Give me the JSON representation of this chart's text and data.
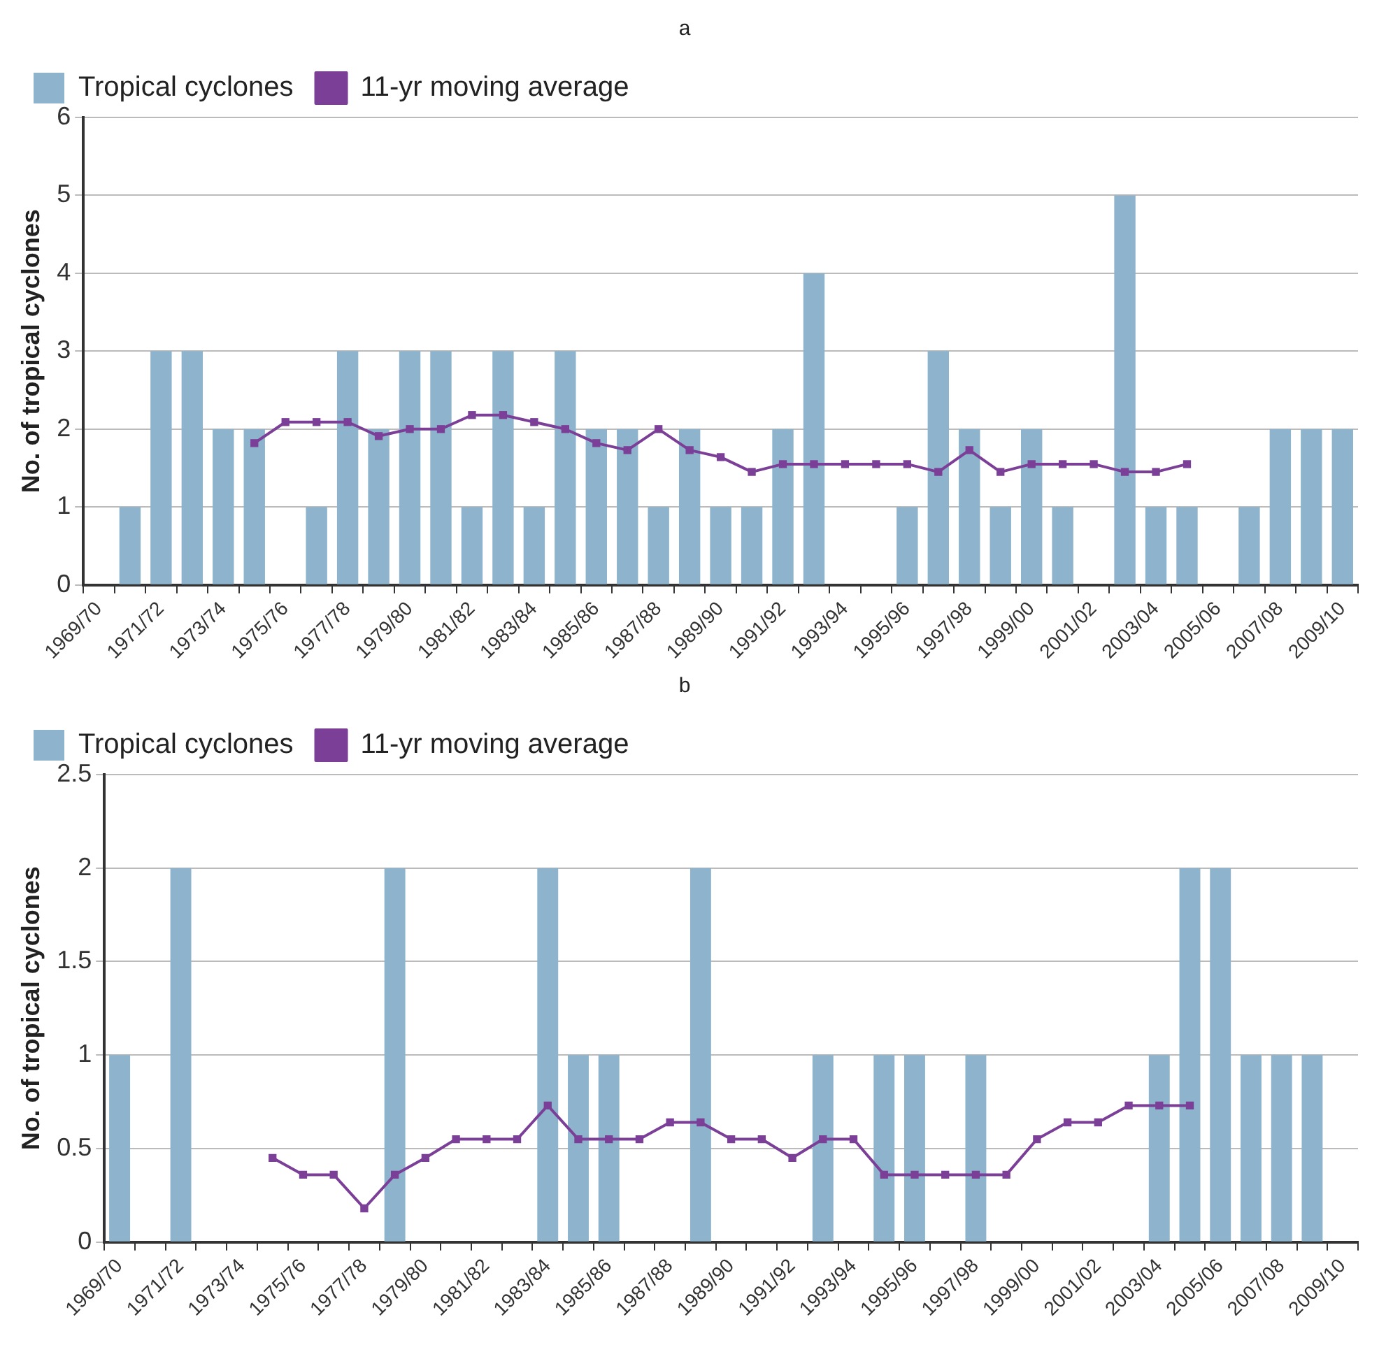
{
  "chart_data": [
    {
      "type": "bar",
      "title": "a",
      "ylabel": "No. of tropical cyclones",
      "categories": [
        "1969/70",
        null,
        "1971/72",
        null,
        "1973/74",
        null,
        "1975/76",
        null,
        "1977/78",
        null,
        "1979/80",
        null,
        "1981/82",
        null,
        "1983/84",
        null,
        "1985/86",
        null,
        "1987/88",
        null,
        "1989/90",
        null,
        "1991/92",
        null,
        "1993/94",
        null,
        "1995/96",
        null,
        "1997/98",
        null,
        "1999/00",
        null,
        "2001/02",
        null,
        "2003/04",
        null,
        "2005/06",
        null,
        "2007/08",
        null,
        "2009/10"
      ],
      "series": [
        {
          "name": "Tropical cyclones",
          "color": "#8db4cc",
          "values": [
            0,
            1,
            3,
            3,
            2,
            2,
            0,
            1,
            3,
            2,
            3,
            3,
            1,
            3,
            1,
            3,
            2,
            2,
            1,
            2,
            1,
            1,
            2,
            4,
            0,
            0,
            1,
            3,
            2,
            1,
            2,
            1,
            0,
            5,
            1,
            1,
            0,
            1,
            2,
            2,
            2
          ]
        },
        {
          "name": "11-yr moving average",
          "type": "line",
          "color": "#7b3f98",
          "values": [
            null,
            null,
            null,
            null,
            null,
            1.82,
            2.09,
            2.09,
            2.09,
            1.91,
            2.0,
            2.0,
            2.18,
            2.18,
            2.09,
            2.0,
            1.82,
            1.73,
            2.0,
            1.73,
            1.64,
            1.45,
            1.55,
            1.55,
            1.55,
            1.55,
            1.55,
            1.45,
            1.73,
            1.45,
            1.55,
            1.55,
            1.55,
            1.45,
            1.45,
            1.55,
            null,
            null,
            null,
            null,
            null
          ]
        }
      ],
      "ylim": [
        0,
        6
      ],
      "yticks": [
        0,
        1,
        2,
        3,
        4,
        5,
        6
      ],
      "grid": "y",
      "legend": "top left",
      "marker": "square",
      "line_style": "solid"
    },
    {
      "type": "bar",
      "title": "b",
      "ylabel": "No. of tropical cyclones",
      "categories": [
        "1969/70",
        null,
        "1971/72",
        null,
        "1973/74",
        null,
        "1975/76",
        null,
        "1977/78",
        null,
        "1979/80",
        null,
        "1981/82",
        null,
        "1983/84",
        null,
        "1985/86",
        null,
        "1987/88",
        null,
        "1989/90",
        null,
        "1991/92",
        null,
        "1993/94",
        null,
        "1995/96",
        null,
        "1997/98",
        null,
        "1999/00",
        null,
        "2001/02",
        null,
        "2003/04",
        null,
        "2005/06",
        null,
        "2007/08",
        null,
        "2009/10"
      ],
      "series": [
        {
          "name": "Tropical cyclones",
          "color": "#8db4cc",
          "values": [
            1,
            0,
            2,
            0,
            0,
            0,
            0,
            0,
            0,
            2,
            0,
            0,
            0,
            0,
            2,
            1,
            1,
            0,
            0,
            2,
            0,
            0,
            0,
            1,
            0,
            1,
            1,
            0,
            1,
            0,
            0,
            0,
            0,
            0,
            1,
            2,
            2,
            1,
            1,
            1,
            0
          ]
        },
        {
          "name": "11-yr moving average",
          "type": "line",
          "color": "#7b3f98",
          "values": [
            null,
            null,
            null,
            null,
            null,
            0.45,
            0.36,
            0.36,
            0.18,
            0.36,
            0.45,
            0.55,
            0.55,
            0.55,
            0.73,
            0.55,
            0.55,
            0.55,
            0.64,
            0.64,
            0.55,
            0.55,
            0.45,
            0.55,
            0.55,
            0.36,
            0.36,
            0.36,
            0.36,
            0.36,
            0.55,
            0.64,
            0.64,
            0.73,
            0.73,
            0.73,
            null,
            null,
            null,
            null,
            null
          ]
        }
      ],
      "ylim": [
        0,
        2.5
      ],
      "yticks": [
        0,
        0.5,
        1,
        1.5,
        2,
        2.5
      ],
      "grid": "y",
      "legend": "top left",
      "marker": "square",
      "line_style": "solid"
    }
  ]
}
